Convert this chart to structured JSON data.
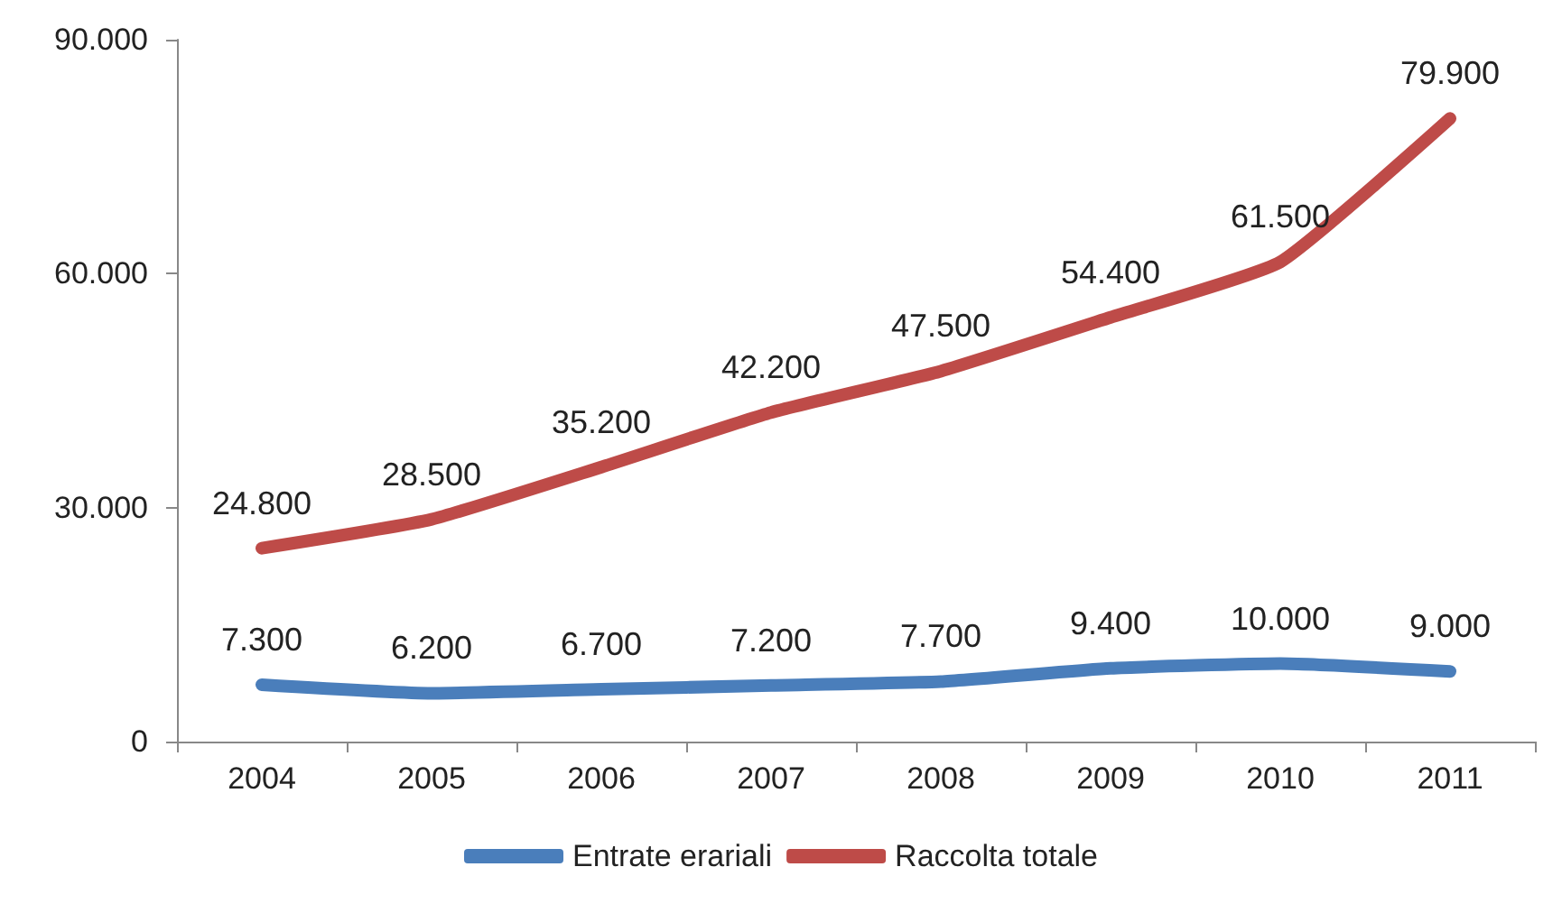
{
  "chart_data": {
    "type": "line",
    "categories": [
      "2004",
      "2005",
      "2006",
      "2007",
      "2008",
      "2009",
      "2010",
      "2011"
    ],
    "series": [
      {
        "name": "Entrate erariali",
        "color": "#4a7ebb",
        "values": [
          7300,
          6200,
          6700,
          7200,
          7700,
          9400,
          10000,
          9000
        ],
        "value_labels": [
          "7.300",
          "6.200",
          "6.700",
          "7.200",
          "7.700",
          "9.400",
          "10.000",
          "9.000"
        ]
      },
      {
        "name": "Raccolta totale",
        "color": "#be4b48",
        "values": [
          24800,
          28500,
          35200,
          42200,
          47500,
          54400,
          61500,
          79900
        ],
        "value_labels": [
          "24.800",
          "28.500",
          "35.200",
          "42.200",
          "47.500",
          "54.400",
          "61.500",
          "79.900"
        ]
      }
    ],
    "ylim": [
      0,
      90000
    ],
    "yticks": [
      {
        "value": 0,
        "label": "0"
      },
      {
        "value": 30000,
        "label": "30.000"
      },
      {
        "value": 60000,
        "label": "60.000"
      },
      {
        "value": 90000,
        "label": "90.000"
      }
    ],
    "grid": false,
    "legend": "bottom",
    "marker": "none",
    "line_style": "solid"
  }
}
